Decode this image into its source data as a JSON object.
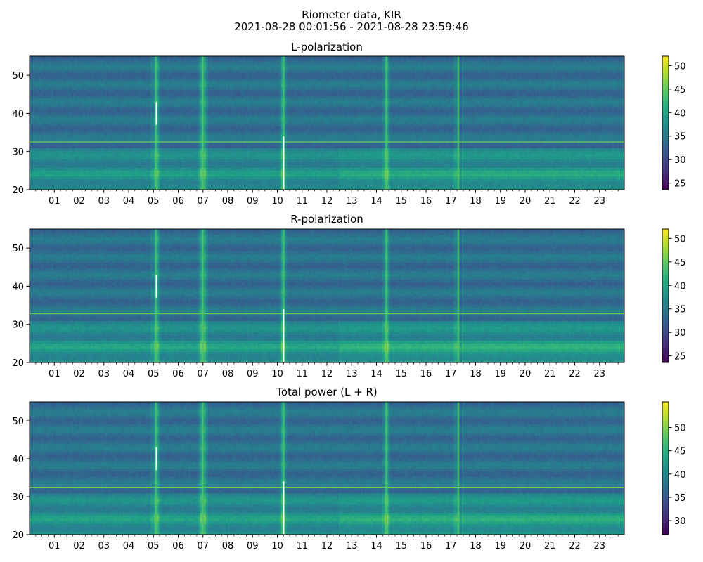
{
  "figure": {
    "title_line1": "Riometer data, KIR",
    "title_line2": "2021-08-28 00:01:56 - 2021-08-28 23:59:46"
  },
  "colors": {
    "colormap": "viridis",
    "spike": "#f4ffff",
    "frame": "#000000"
  },
  "chart_data": [
    {
      "type": "heatmap",
      "title": "L-polarization",
      "x_range_hours": [
        0,
        24
      ],
      "x_tick_labels": [
        "01",
        "02",
        "03",
        "04",
        "05",
        "06",
        "07",
        "08",
        "09",
        "10",
        "11",
        "12",
        "13",
        "14",
        "15",
        "16",
        "17",
        "18",
        "19",
        "20",
        "21",
        "22",
        "23"
      ],
      "ylim": [
        20,
        55
      ],
      "y_ticks": [
        20,
        30,
        40,
        50
      ],
      "colorbar": {
        "range": [
          23.6,
          52
        ],
        "ticks": [
          25,
          30,
          35,
          40,
          45,
          50
        ]
      },
      "features": {
        "low_band_y": [
          21.5,
          26
        ],
        "quiet_level": 34,
        "band_level": 40,
        "horizontal_line_y": 32.5,
        "vertical_events_hours": [
          5.1,
          7.0,
          10.25,
          14.4,
          17.3
        ],
        "white_streak_hours": [
          10.25,
          5.12
        ]
      }
    },
    {
      "type": "heatmap",
      "title": "R-polarization",
      "x_range_hours": [
        0,
        24
      ],
      "x_tick_labels": [
        "01",
        "02",
        "03",
        "04",
        "05",
        "06",
        "07",
        "08",
        "09",
        "10",
        "11",
        "12",
        "13",
        "14",
        "15",
        "16",
        "17",
        "18",
        "19",
        "20",
        "21",
        "22",
        "23"
      ],
      "ylim": [
        20,
        55
      ],
      "y_ticks": [
        20,
        30,
        40,
        50
      ],
      "colorbar": {
        "range": [
          23.6,
          52
        ],
        "ticks": [
          25,
          30,
          35,
          40,
          45,
          50
        ]
      },
      "features": {
        "low_band_y": [
          21.5,
          26
        ],
        "quiet_level": 34,
        "band_level": 41,
        "horizontal_line_y": 32.8,
        "vertical_events_hours": [
          5.1,
          7.0,
          10.25,
          14.4,
          17.3
        ],
        "white_streak_hours": [
          10.25,
          5.12
        ]
      }
    },
    {
      "type": "heatmap",
      "title": "Total power (L + R)",
      "x_range_hours": [
        0,
        24
      ],
      "x_tick_labels": [
        "01",
        "02",
        "03",
        "04",
        "05",
        "06",
        "07",
        "08",
        "09",
        "10",
        "11",
        "12",
        "13",
        "14",
        "15",
        "16",
        "17",
        "18",
        "19",
        "20",
        "21",
        "22",
        "23"
      ],
      "ylim": [
        20,
        55
      ],
      "y_ticks": [
        20,
        30,
        40,
        50
      ],
      "colorbar": {
        "range": [
          27,
          55.5
        ],
        "ticks": [
          30,
          35,
          40,
          45,
          50
        ]
      },
      "features": {
        "low_band_y": [
          21.5,
          26
        ],
        "quiet_level": 37.5,
        "band_level": 44,
        "horizontal_line_y": 32.5,
        "vertical_events_hours": [
          5.1,
          7.0,
          10.25,
          14.4,
          17.3
        ],
        "white_streak_hours": [
          10.25,
          5.12
        ]
      }
    }
  ]
}
